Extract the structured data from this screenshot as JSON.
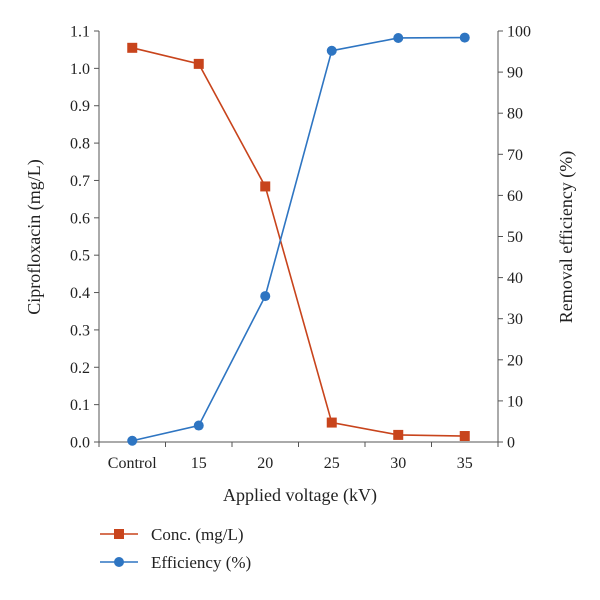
{
  "chart_data": {
    "type": "line",
    "categories": [
      "Control",
      "15",
      "20",
      "25",
      "30",
      "35"
    ],
    "xlabel": "Applied voltage (kV)",
    "ylabel_left": "Ciprofloxacin (mg/L)",
    "ylabel_right": "Removal efficiency (%)",
    "ylim_left": [
      0,
      1.1
    ],
    "ylim_right": [
      0,
      100
    ],
    "yticks_left": [
      "0.0",
      "0.1",
      "0.2",
      "0.3",
      "0.4",
      "0.5",
      "0.6",
      "0.7",
      "0.8",
      "0.9",
      "1.0",
      "1.1"
    ],
    "yticks_right": [
      "0",
      "10",
      "20",
      "30",
      "40",
      "50",
      "60",
      "70",
      "80",
      "90",
      "100"
    ],
    "grid": false,
    "legend_position": "bottom",
    "series": [
      {
        "name": "Conc. (mg/L)",
        "axis": "left",
        "marker": "square",
        "color": "#c8441c",
        "values": [
          1.055,
          1.012,
          0.684,
          0.052,
          0.019,
          0.016
        ]
      },
      {
        "name": "Efficiency (%)",
        "axis": "right",
        "marker": "circle",
        "color": "#2e75c2",
        "values": [
          0.3,
          4.0,
          35.5,
          95.2,
          98.3,
          98.4
        ]
      }
    ]
  }
}
